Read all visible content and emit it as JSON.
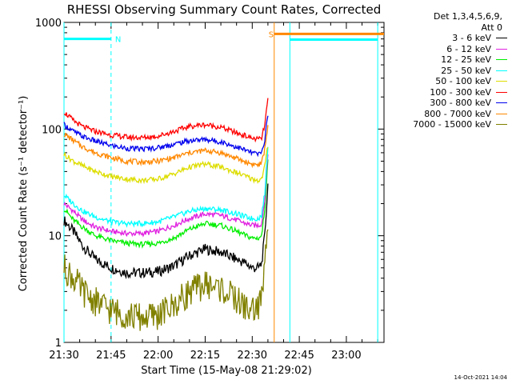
{
  "chart_data": {
    "type": "line",
    "title": "RHESSI Observing Summary Count Rates, Corrected",
    "xlabel": "Start Time (15-May-08 21:29:02)",
    "ylabel": "Corrected Count Rate (s⁻¹ detector⁻¹)",
    "x_ticks": [
      "21:30",
      "21:45",
      "22:00",
      "22:15",
      "22:30",
      "22:45",
      "23:00"
    ],
    "x_tick_minutes": [
      0,
      15,
      30,
      45,
      60,
      75,
      90
    ],
    "xlim_minutes": [
      0,
      102
    ],
    "y_scale": "log",
    "ylim": [
      1,
      1000
    ],
    "y_ticks": [
      "1",
      "10",
      "100",
      "1000"
    ],
    "legend": {
      "header_line1": "Det 1,3,4,5,6,9,",
      "header_line2": "Att 0",
      "placement": "right"
    },
    "series": [
      {
        "name": "3 - 6 keV",
        "color": "#000000",
        "x": [
          0,
          3,
          6,
          10,
          15,
          20,
          25,
          30,
          35,
          40,
          45,
          50,
          55,
          58,
          60,
          62,
          63,
          64,
          65
        ],
        "y": [
          14,
          11,
          8,
          6,
          5,
          4.5,
          4.5,
          4.6,
          5.2,
          6.5,
          7.5,
          7,
          6,
          5.5,
          5,
          5,
          5.5,
          10,
          30
        ]
      },
      {
        "name": "6 - 12 keV",
        "color": "#e020e0",
        "x": [
          0,
          3,
          6,
          10,
          15,
          20,
          25,
          30,
          35,
          40,
          45,
          50,
          55,
          58,
          60,
          62,
          63,
          64,
          65
        ],
        "y": [
          20,
          17,
          14,
          12,
          11,
          10.5,
          10.5,
          11,
          12.5,
          14.5,
          16,
          15.5,
          14,
          13,
          12.5,
          12.5,
          13,
          22,
          60
        ]
      },
      {
        "name": "12 - 25 keV",
        "color": "#00ee00",
        "x": [
          0,
          3,
          6,
          10,
          15,
          20,
          25,
          30,
          35,
          40,
          45,
          50,
          55,
          58,
          60,
          62,
          63,
          64,
          65
        ],
        "y": [
          18,
          14,
          12,
          10,
          9,
          8.5,
          8.3,
          8.5,
          9.5,
          11.5,
          13,
          12.5,
          11,
          10,
          9.5,
          9.5,
          10,
          18,
          50
        ]
      },
      {
        "name": "25 - 50 keV",
        "color": "#00ffff",
        "x": [
          0,
          3,
          6,
          10,
          15,
          20,
          25,
          30,
          35,
          40,
          45,
          50,
          55,
          58,
          60,
          62,
          63,
          64,
          65
        ],
        "y": [
          24,
          20,
          17,
          15,
          13.5,
          13,
          13,
          13.5,
          15,
          17,
          18,
          17.5,
          16,
          15,
          14.5,
          14.5,
          15.5,
          25,
          70
        ]
      },
      {
        "name": "50 - 100 keV",
        "color": "#dddd00",
        "x": [
          0,
          3,
          6,
          10,
          15,
          20,
          25,
          30,
          35,
          40,
          45,
          50,
          55,
          58,
          60,
          62,
          63,
          64,
          65
        ],
        "y": [
          58,
          50,
          45,
          40,
          36,
          34,
          33,
          34,
          38,
          44,
          47,
          44,
          39,
          36,
          34,
          33,
          34,
          45,
          70
        ]
      },
      {
        "name": "100 - 300 keV",
        "color": "#ff0000",
        "x": [
          0,
          3,
          6,
          10,
          15,
          20,
          25,
          30,
          35,
          40,
          45,
          50,
          55,
          58,
          60,
          62,
          63,
          64,
          65
        ],
        "y": [
          145,
          120,
          105,
          95,
          88,
          84,
          83,
          86,
          95,
          106,
          110,
          104,
          92,
          86,
          82,
          80,
          82,
          110,
          190
        ]
      },
      {
        "name": "300 - 800 keV",
        "color": "#0000ee",
        "x": [
          0,
          3,
          6,
          10,
          15,
          20,
          25,
          30,
          35,
          40,
          45,
          50,
          55,
          58,
          60,
          62,
          63,
          64,
          65
        ],
        "y": [
          110,
          95,
          85,
          77,
          70,
          66,
          65,
          67,
          72,
          78,
          80,
          76,
          68,
          63,
          60,
          58,
          60,
          80,
          140
        ]
      },
      {
        "name": "800 - 7000 keV",
        "color": "#ff8800",
        "x": [
          0,
          3,
          6,
          10,
          15,
          20,
          25,
          30,
          35,
          40,
          45,
          50,
          55,
          58,
          60,
          62,
          63,
          64,
          65
        ],
        "y": [
          90,
          78,
          68,
          60,
          54,
          50,
          49,
          50,
          54,
          60,
          63,
          60,
          53,
          49,
          47,
          46,
          48,
          65,
          110
        ]
      },
      {
        "name": "7000 - 15000 keV",
        "color": "#808000",
        "x": [
          0,
          3,
          6,
          10,
          15,
          20,
          25,
          30,
          35,
          40,
          45,
          50,
          55,
          58,
          60,
          62,
          63,
          64,
          65
        ],
        "y": [
          5,
          4,
          3,
          2.4,
          2,
          1.8,
          1.7,
          1.8,
          2.2,
          3,
          3.5,
          3.2,
          2.5,
          2.1,
          2,
          2.2,
          2.6,
          5,
          15
        ]
      }
    ],
    "flags": [
      {
        "label": "N",
        "color": "#00ffff",
        "x_start": 0,
        "x_end": 15,
        "level": 700
      },
      {
        "label": "S",
        "color": "#ff8800",
        "x_start": 67,
        "x_end": 102,
        "level": 780
      },
      {
        "label": "",
        "color": "#00ffff",
        "x_start": 72,
        "x_end": 100,
        "level": 690
      }
    ],
    "vertical_lines": [
      {
        "color": "#00ffff",
        "x": 0,
        "style": "solid"
      },
      {
        "color": "#00ffff",
        "x": 15,
        "style": "dashed"
      },
      {
        "color": "#ff8800",
        "x": 67,
        "style": "solid"
      },
      {
        "color": "#00ffff",
        "x": 72,
        "style": "solid"
      },
      {
        "color": "#00ffff",
        "x": 100,
        "style": "solid"
      }
    ]
  },
  "timestamp": "14-Oct-2021 14:04"
}
